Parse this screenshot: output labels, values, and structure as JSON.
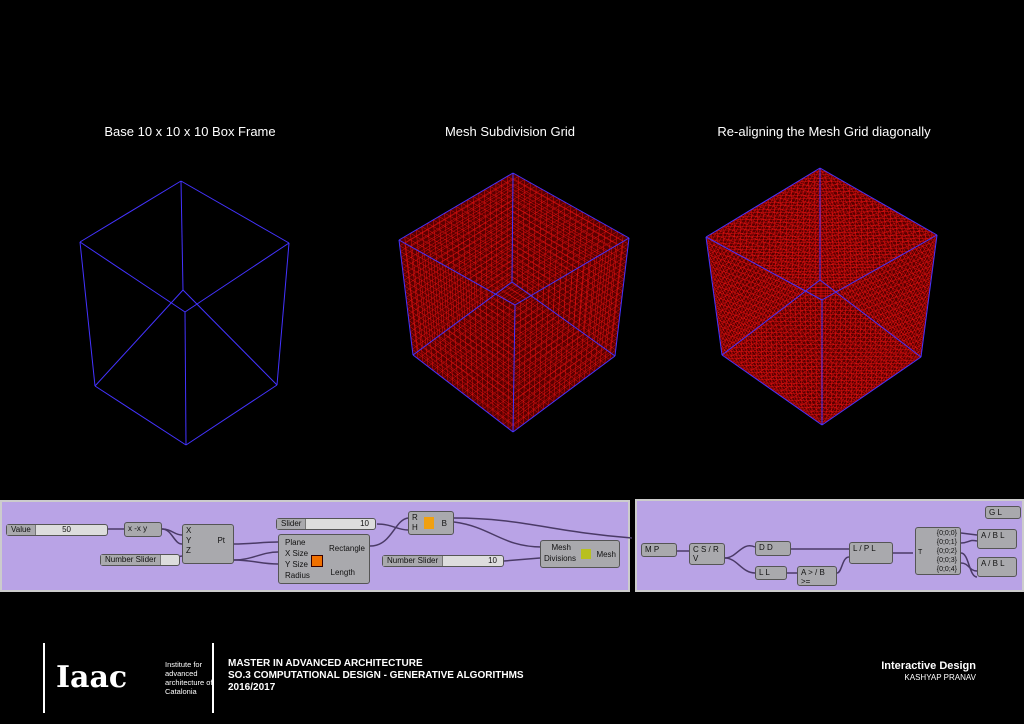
{
  "captions": [
    "Base 10 x 10 x 10 Box Frame",
    "Mesh Subdivision Grid",
    "Re-aligning the Mesh Grid diagonally"
  ],
  "colors": {
    "frame": "#4433ff",
    "grid": "#e01010",
    "gridfill": "#5a0000",
    "canvas": "#b9a3e6"
  },
  "gh1": {
    "value_label": "Value",
    "value": "50",
    "expr": "x  -x  y",
    "xyz": [
      "X",
      "Y",
      "Z"
    ],
    "pt": "Pt",
    "number_slider": "Number Slider",
    "slider_label": "Slider",
    "slider_value": "10",
    "rect_inputs": [
      "Plane",
      "X Size",
      "Y Size",
      "Radius"
    ],
    "rect_outputs": [
      "Rectangle",
      "Length"
    ],
    "box_in": [
      "R",
      "H"
    ],
    "box_out": "B",
    "number_slider2": "Number Slider",
    "slider2_value": "10",
    "mesh_inputs": [
      "Mesh",
      "Divisions"
    ],
    "mesh_out": "Mesh"
  },
  "gh2": {
    "n1": "M  P",
    "n2": "C  S / R  V",
    "n3": "D  D",
    "n4": "L  L",
    "n5": "A  > / B  >=",
    "n6": "L / P   L",
    "n7_in": "T",
    "n7_out": [
      "{0;0;0}",
      "{0;0;1}",
      "{0;0;2}",
      "{0;0;3}",
      "{0;0;4}"
    ],
    "n8": "A / B   L",
    "n9": "A / B   L",
    "n10": "G  L"
  },
  "footer": {
    "logo": "Iaac",
    "institute": "Institute for advanced architecture of Catalonia",
    "line1": "MASTER IN ADVANCED ARCHITECTURE",
    "line2": "SO.3 COMPUTATIONAL DESIGN - GENERATIVE ALGORITHMS",
    "line3": "2016/2017",
    "project": "Interactive Design",
    "author": "KASHYAP PRANAV"
  }
}
